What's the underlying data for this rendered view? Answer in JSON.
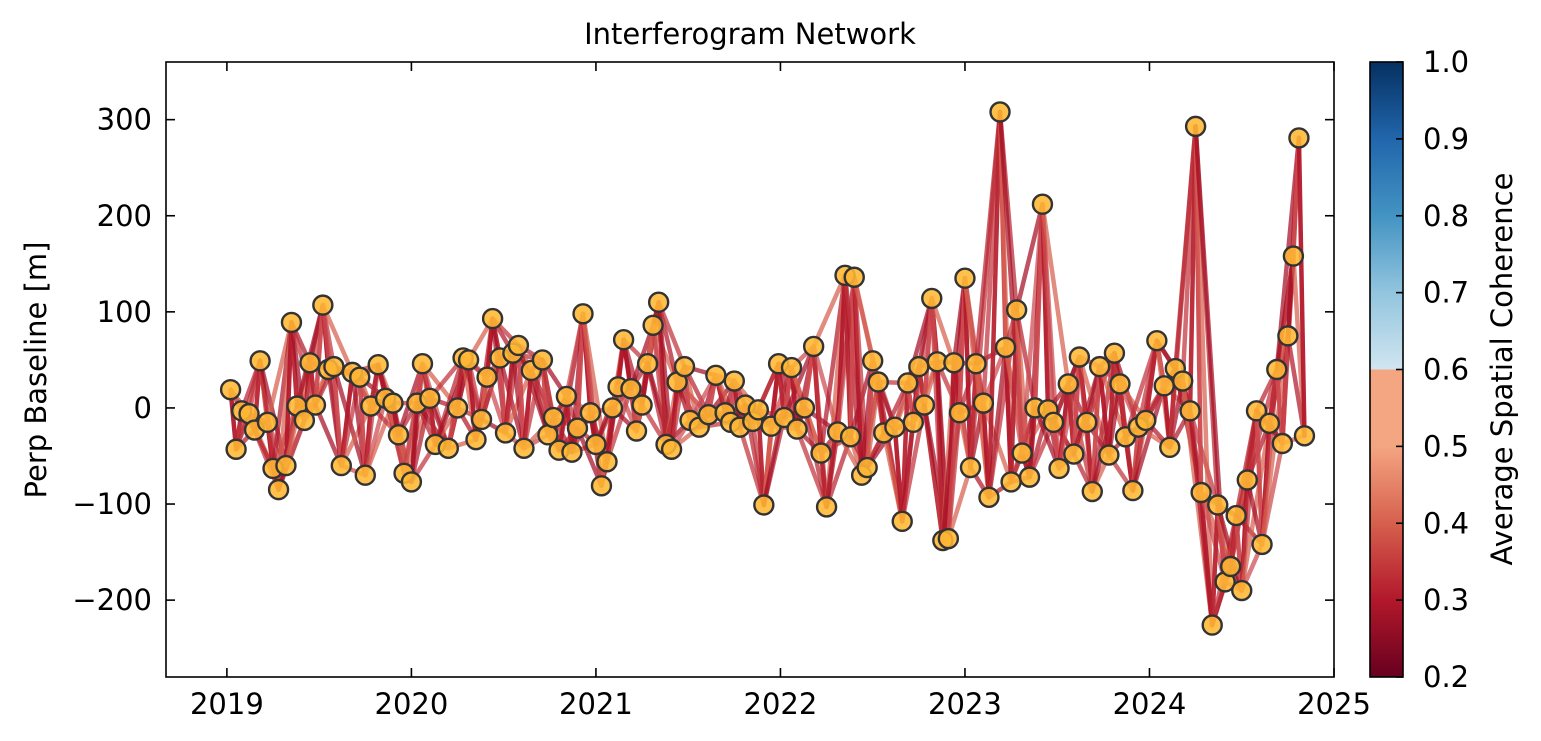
{
  "chart_data": {
    "type": "scatter",
    "title": "Interferogram Network",
    "xlabel": "",
    "ylabel": "Perp Baseline [m]",
    "xlim": [
      2018.67,
      2025.0
    ],
    "ylim": [
      -280,
      360
    ],
    "xticks": [
      "2019",
      "2020",
      "2021",
      "2022",
      "2023",
      "2024",
      "2025"
    ],
    "xtick_values": [
      2019,
      2020,
      2021,
      2022,
      2023,
      2024,
      2025
    ],
    "yticks": [
      -200,
      -100,
      0,
      100,
      200,
      300
    ],
    "ytick_labels": [
      "−200",
      "−100",
      "0",
      "100",
      "200",
      "300"
    ],
    "grid": false,
    "colorbar": {
      "label": "Average Spatial Coherence",
      "range": [
        0.2,
        1.0
      ],
      "ticks": [
        "0.2",
        "0.3",
        "0.4",
        "0.5",
        "0.6",
        "0.7",
        "0.8",
        "0.9",
        "1.0"
      ],
      "colormap": "RdBu"
    },
    "marker_color": "#ffb733",
    "marker_edge_color": "#333333",
    "acquisitions": [
      [
        2019.02,
        19
      ],
      [
        2019.05,
        -43
      ],
      [
        2019.08,
        -3
      ],
      [
        2019.12,
        -6
      ],
      [
        2019.15,
        -23
      ],
      [
        2019.18,
        49
      ],
      [
        2019.22,
        -15
      ],
      [
        2019.25,
        -63
      ],
      [
        2019.28,
        -85
      ],
      [
        2019.32,
        -60
      ],
      [
        2019.35,
        89
      ],
      [
        2019.38,
        2
      ],
      [
        2019.42,
        -13
      ],
      [
        2019.45,
        47
      ],
      [
        2019.48,
        3
      ],
      [
        2019.52,
        107
      ],
      [
        2019.55,
        40
      ],
      [
        2019.58,
        43
      ],
      [
        2019.62,
        -60
      ],
      [
        2019.68,
        37
      ],
      [
        2019.72,
        32
      ],
      [
        2019.75,
        -70
      ],
      [
        2019.78,
        2
      ],
      [
        2019.82,
        45
      ],
      [
        2019.86,
        10
      ],
      [
        2019.9,
        5
      ],
      [
        2019.93,
        -28
      ],
      [
        2019.96,
        -68
      ],
      [
        2020.0,
        -77
      ],
      [
        2020.03,
        5
      ],
      [
        2020.06,
        46
      ],
      [
        2020.1,
        10
      ],
      [
        2020.13,
        -38
      ],
      [
        2020.2,
        -42
      ],
      [
        2020.25,
        0
      ],
      [
        2020.28,
        52
      ],
      [
        2020.31,
        50
      ],
      [
        2020.35,
        -33
      ],
      [
        2020.38,
        -12
      ],
      [
        2020.41,
        32
      ],
      [
        2020.44,
        93
      ],
      [
        2020.48,
        52
      ],
      [
        2020.51,
        -26
      ],
      [
        2020.55,
        57
      ],
      [
        2020.58,
        65
      ],
      [
        2020.61,
        -42
      ],
      [
        2020.65,
        39
      ],
      [
        2020.71,
        50
      ],
      [
        2020.74,
        -28
      ],
      [
        2020.77,
        -10
      ],
      [
        2020.8,
        -44
      ],
      [
        2020.84,
        12
      ],
      [
        2020.87,
        -46
      ],
      [
        2020.9,
        -21
      ],
      [
        2020.93,
        98
      ],
      [
        2020.97,
        -5
      ],
      [
        2021.0,
        -38
      ],
      [
        2021.03,
        -81
      ],
      [
        2021.06,
        -56
      ],
      [
        2021.09,
        0
      ],
      [
        2021.12,
        22
      ],
      [
        2021.15,
        71
      ],
      [
        2021.19,
        20
      ],
      [
        2021.22,
        -24
      ],
      [
        2021.25,
        3
      ],
      [
        2021.28,
        46
      ],
      [
        2021.31,
        86
      ],
      [
        2021.34,
        110
      ],
      [
        2021.38,
        -38
      ],
      [
        2021.41,
        -43
      ],
      [
        2021.44,
        27
      ],
      [
        2021.48,
        43
      ],
      [
        2021.51,
        -13
      ],
      [
        2021.56,
        -20
      ],
      [
        2021.61,
        -7
      ],
      [
        2021.65,
        34
      ],
      [
        2021.7,
        -5
      ],
      [
        2021.73,
        -15
      ],
      [
        2021.75,
        28
      ],
      [
        2021.78,
        -20
      ],
      [
        2021.81,
        3
      ],
      [
        2021.85,
        -14
      ],
      [
        2021.88,
        -2
      ],
      [
        2021.91,
        -101
      ],
      [
        2021.95,
        -19
      ],
      [
        2021.99,
        46
      ],
      [
        2022.02,
        -10
      ],
      [
        2022.06,
        42
      ],
      [
        2022.09,
        -22
      ],
      [
        2022.13,
        0
      ],
      [
        2022.18,
        64
      ],
      [
        2022.22,
        -47
      ],
      [
        2022.25,
        -103
      ],
      [
        2022.31,
        -25
      ],
      [
        2022.35,
        138
      ],
      [
        2022.38,
        -30
      ],
      [
        2022.4,
        136
      ],
      [
        2022.44,
        -70
      ],
      [
        2022.47,
        -62
      ],
      [
        2022.5,
        49
      ],
      [
        2022.53,
        27
      ],
      [
        2022.56,
        -26
      ],
      [
        2022.62,
        -20
      ],
      [
        2022.66,
        -118
      ],
      [
        2022.69,
        26
      ],
      [
        2022.72,
        -15
      ],
      [
        2022.75,
        43
      ],
      [
        2022.78,
        3
      ],
      [
        2022.82,
        114
      ],
      [
        2022.85,
        48
      ],
      [
        2022.88,
        -138
      ],
      [
        2022.91,
        -136
      ],
      [
        2022.94,
        47
      ],
      [
        2022.97,
        -5
      ],
      [
        2023.0,
        135
      ],
      [
        2023.03,
        -62
      ],
      [
        2023.06,
        46
      ],
      [
        2023.1,
        5
      ],
      [
        2023.13,
        -93
      ],
      [
        2023.19,
        308
      ],
      [
        2023.22,
        63
      ],
      [
        2023.25,
        -77
      ],
      [
        2023.28,
        102
      ],
      [
        2023.31,
        -47
      ],
      [
        2023.35,
        -72
      ],
      [
        2023.38,
        0
      ],
      [
        2023.42,
        212
      ],
      [
        2023.45,
        -2
      ],
      [
        2023.48,
        -15
      ],
      [
        2023.51,
        -63
      ],
      [
        2023.56,
        25
      ],
      [
        2023.59,
        -48
      ],
      [
        2023.62,
        53
      ],
      [
        2023.66,
        -15
      ],
      [
        2023.69,
        -87
      ],
      [
        2023.73,
        43
      ],
      [
        2023.78,
        -49
      ],
      [
        2023.81,
        57
      ],
      [
        2023.84,
        25
      ],
      [
        2023.87,
        -30
      ],
      [
        2023.91,
        -86
      ],
      [
        2023.94,
        -20
      ],
      [
        2023.98,
        -13
      ],
      [
        2024.04,
        70
      ],
      [
        2024.08,
        23
      ],
      [
        2024.11,
        -41
      ],
      [
        2024.14,
        41
      ],
      [
        2024.18,
        28
      ],
      [
        2024.22,
        -3
      ],
      [
        2024.25,
        293
      ],
      [
        2024.28,
        -88
      ],
      [
        2024.34,
        -226
      ],
      [
        2024.37,
        -101
      ],
      [
        2024.41,
        -181
      ],
      [
        2024.44,
        -165
      ],
      [
        2024.47,
        -112
      ],
      [
        2024.5,
        -190
      ],
      [
        2024.53,
        -75
      ],
      [
        2024.58,
        -3
      ],
      [
        2024.61,
        -142
      ],
      [
        2024.65,
        -16
      ],
      [
        2024.69,
        40
      ],
      [
        2024.72,
        -37
      ],
      [
        2024.75,
        75
      ],
      [
        2024.78,
        158
      ],
      [
        2024.81,
        281
      ],
      [
        2024.84,
        -29
      ]
    ],
    "connections_per_acquisition": 4
  }
}
